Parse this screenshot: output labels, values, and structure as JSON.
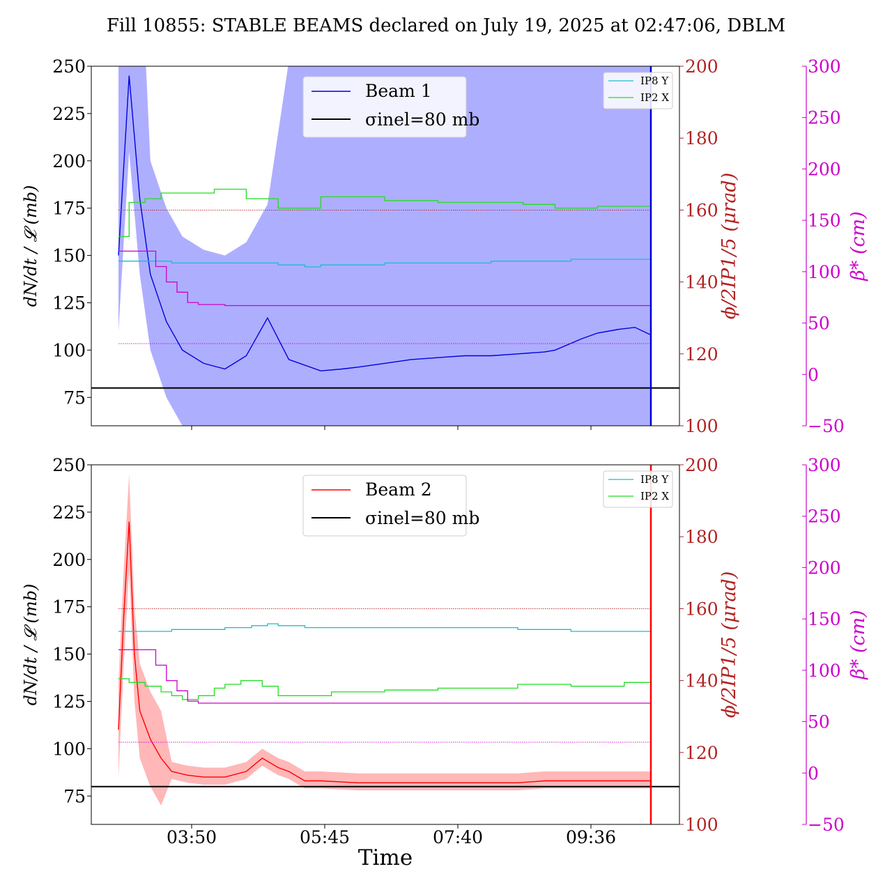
{
  "figure_title": "Fill 10855: STABLE BEAMS declared on July 19, 2025 at 02:47:06, DBLM",
  "colors": {
    "beam1": "#0000dd",
    "beam1_band": "#aaaaff",
    "beam2": "#ff0000",
    "beam2_band": "#ffaaaa",
    "ip8y": "#17becf",
    "ip2x": "#22dd22",
    "beta": "#cc00cc",
    "phi_axis": "#b22222",
    "sigma": "#000000"
  },
  "chart_data": [
    {
      "type": "line",
      "panel": "top",
      "xlabel": "",
      "x_ticks": [
        "03:50",
        "05:45",
        "07:40",
        "09:36"
      ],
      "ylabel_left": "dN/dt / 𝓛 (mb)",
      "ylim_left": [
        60,
        250
      ],
      "y_ticks_left": [
        "75",
        "100",
        "125",
        "150",
        "175",
        "200",
        "225",
        "250"
      ],
      "ylabel_right1": "ϕ/2IP1/5 (μrad)",
      "ylim_right1": [
        100,
        200
      ],
      "y_ticks_right1": [
        "100",
        "120",
        "140",
        "160",
        "180",
        "200"
      ],
      "ylabel_right2": "β* (cm)",
      "ylim_right2": [
        -50,
        300
      ],
      "y_ticks_right2": [
        "−50",
        "0",
        "50",
        "100",
        "150",
        "200",
        "250",
        "300"
      ],
      "legend_main": [
        "Beam 1",
        "σinel=80 mb"
      ],
      "legend_main_position": "top-center",
      "legend_small": [
        "IP8 Y",
        "IP2 X"
      ],
      "legend_small_position": "top-right",
      "series": [
        {
          "name": "Beam 1",
          "axis": "left",
          "x": [
            0,
            0.02,
            0.04,
            0.06,
            0.09,
            0.12,
            0.16,
            0.2,
            0.24,
            0.28,
            0.32,
            0.38,
            0.42,
            0.45,
            0.5,
            0.55,
            0.6,
            0.65,
            0.7,
            0.75,
            0.8,
            0.82,
            0.87,
            0.9,
            0.94,
            0.97,
            1.0
          ],
          "y": [
            150,
            245,
            180,
            140,
            115,
            100,
            93,
            90,
            97,
            117,
            95,
            89,
            90,
            91,
            93,
            95,
            96,
            97,
            97,
            98,
            99,
            100,
            106,
            109,
            111,
            112,
            108
          ]
        },
        {
          "name": "σinel=80 mb",
          "axis": "left",
          "x": [
            -0.1,
            1.1
          ],
          "y": [
            80,
            80
          ]
        },
        {
          "name": "IP8 Y",
          "axis": "left",
          "x": [
            0,
            0.05,
            0.1,
            0.2,
            0.3,
            0.35,
            0.38,
            0.5,
            0.6,
            0.7,
            0.75,
            0.85,
            1.0
          ],
          "y": [
            147,
            147,
            146,
            146,
            145,
            144,
            145,
            146,
            146,
            147,
            147,
            148,
            147
          ]
        },
        {
          "name": "IP2 X",
          "axis": "left",
          "x": [
            0,
            0.02,
            0.05,
            0.08,
            0.12,
            0.18,
            0.24,
            0.3,
            0.35,
            0.38,
            0.43,
            0.5,
            0.6,
            0.7,
            0.76,
            0.82,
            0.9,
            0.95,
            1.0
          ],
          "y": [
            160,
            178,
            180,
            183,
            183,
            185,
            180,
            175,
            175,
            181,
            181,
            179,
            178,
            178,
            177,
            175,
            176,
            176,
            175
          ]
        },
        {
          "name": "β*",
          "axis": "right2",
          "x": [
            0,
            0.05,
            0.07,
            0.09,
            0.11,
            0.13,
            0.15,
            0.2,
            0.4,
            0.6,
            0.8,
            1.0
          ],
          "y": [
            120,
            120,
            105,
            90,
            80,
            70,
            68,
            67,
            67,
            67,
            67,
            67
          ]
        },
        {
          "name": "ϕ/2 reference",
          "axis": "right1",
          "x": [
            0,
            1
          ],
          "y": [
            160,
            160
          ]
        },
        {
          "name": "β* reference",
          "axis": "right2",
          "x": [
            0,
            1
          ],
          "y": [
            30,
            30
          ]
        }
      ]
    },
    {
      "type": "line",
      "panel": "bottom",
      "xlabel": "Time",
      "x_ticks": [
        "03:50",
        "05:45",
        "07:40",
        "09:36"
      ],
      "ylabel_left": "dN/dt / 𝓛 (mb)",
      "ylim_left": [
        60,
        250
      ],
      "y_ticks_left": [
        "75",
        "100",
        "125",
        "150",
        "175",
        "200",
        "225",
        "250"
      ],
      "ylabel_right1": "ϕ/2IP1/5 (μrad)",
      "ylim_right1": [
        100,
        200
      ],
      "y_ticks_right1": [
        "100",
        "120",
        "140",
        "160",
        "180",
        "200"
      ],
      "ylabel_right2": "β* (cm)",
      "ylim_right2": [
        -50,
        300
      ],
      "y_ticks_right2": [
        "−50",
        "0",
        "50",
        "100",
        "150",
        "200",
        "250",
        "300"
      ],
      "legend_main": [
        "Beam 2",
        "σinel=80 mb"
      ],
      "legend_main_position": "top-center",
      "legend_small": [
        "IP8 Y",
        "IP2 X"
      ],
      "legend_small_position": "top-right",
      "series": [
        {
          "name": "Beam 2",
          "axis": "left",
          "x": [
            0,
            0.01,
            0.02,
            0.03,
            0.04,
            0.06,
            0.08,
            0.1,
            0.13,
            0.16,
            0.2,
            0.24,
            0.27,
            0.3,
            0.32,
            0.35,
            0.38,
            0.45,
            0.5,
            0.55,
            0.6,
            0.65,
            0.7,
            0.75,
            0.8,
            0.85,
            0.9,
            0.95,
            1.0
          ],
          "y": [
            110,
            170,
            220,
            150,
            120,
            105,
            95,
            88,
            86,
            85,
            85,
            88,
            95,
            90,
            88,
            83,
            83,
            82,
            82,
            82,
            82,
            82,
            82,
            82,
            83,
            83,
            83,
            83,
            83
          ]
        },
        {
          "name": "σinel=80 mb",
          "axis": "left",
          "x": [
            -0.1,
            1.1
          ],
          "y": [
            80,
            80
          ]
        },
        {
          "name": "IP8 Y",
          "axis": "left",
          "x": [
            0,
            0.05,
            0.1,
            0.2,
            0.25,
            0.28,
            0.3,
            0.35,
            0.45,
            0.55,
            0.65,
            0.75,
            0.85,
            1.0
          ],
          "y": [
            162,
            162,
            163,
            164,
            165,
            166,
            165,
            164,
            164,
            164,
            164,
            163,
            162,
            162
          ]
        },
        {
          "name": "IP2 X",
          "axis": "left",
          "x": [
            0,
            0.02,
            0.05,
            0.08,
            0.1,
            0.12,
            0.15,
            0.18,
            0.2,
            0.23,
            0.27,
            0.3,
            0.35,
            0.4,
            0.5,
            0.6,
            0.7,
            0.75,
            0.85,
            0.95,
            1.0
          ],
          "y": [
            137,
            135,
            133,
            130,
            128,
            126,
            128,
            132,
            134,
            136,
            133,
            128,
            128,
            130,
            131,
            132,
            132,
            134,
            133,
            135,
            134
          ]
        },
        {
          "name": "β*",
          "axis": "right2",
          "x": [
            0,
            0.05,
            0.07,
            0.09,
            0.11,
            0.13,
            0.15,
            0.2,
            0.4,
            0.6,
            0.8,
            1.0
          ],
          "y": [
            120,
            120,
            105,
            90,
            80,
            70,
            68,
            68,
            68,
            68,
            68,
            68
          ]
        },
        {
          "name": "ϕ/2 reference",
          "axis": "right1",
          "x": [
            0,
            1
          ],
          "y": [
            160,
            160
          ]
        },
        {
          "name": "β* reference",
          "axis": "right2",
          "x": [
            0,
            1
          ],
          "y": [
            30,
            30
          ]
        }
      ]
    }
  ]
}
